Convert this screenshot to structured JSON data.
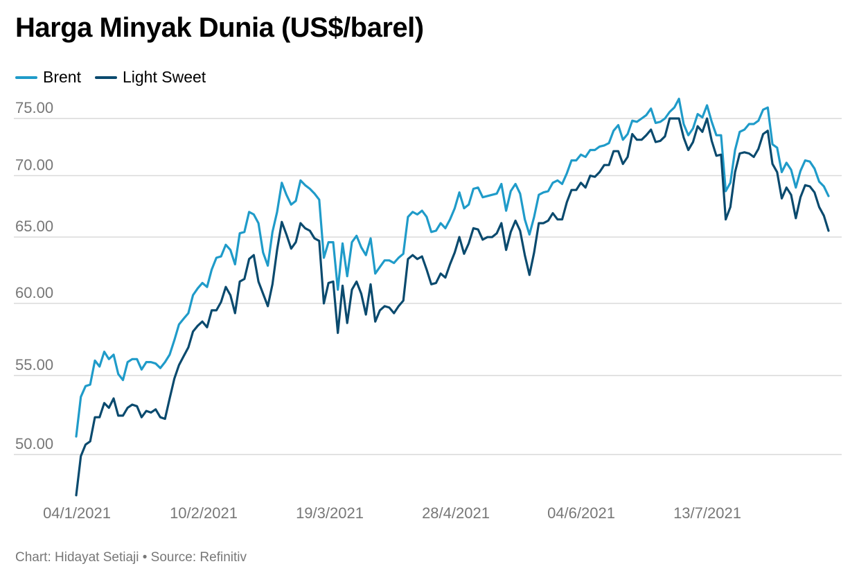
{
  "title": "Harga Minyak Dunia (US$/barel)",
  "footer": "Chart: Hidayat Setiaji • Source: Refinitiv",
  "chart_data": {
    "type": "line",
    "title": "Harga Minyak Dunia (US$/barel)",
    "xlabel": "",
    "ylabel": "",
    "ylim": [
      47.5,
      76.5
    ],
    "y_scale": "log",
    "grid": true,
    "legend_position": "top-left",
    "x_ticks": [
      "04/1/2021",
      "10/2/2021",
      "19/3/2021",
      "28/4/2021",
      "04/6/2021",
      "13/7/2021"
    ],
    "y_ticks": [
      50,
      55,
      60,
      65,
      70,
      75
    ],
    "y_tick_labels": [
      "50.00",
      "55.00",
      "60.00",
      "65.00",
      "70.00",
      "75.00"
    ],
    "series": [
      {
        "name": "Brent",
        "color": "#1f9bc9",
        "values": [
          51.1,
          53.6,
          54.3,
          54.4,
          56.0,
          55.6,
          56.6,
          56.1,
          56.4,
          55.1,
          54.7,
          55.9,
          56.1,
          56.1,
          55.4,
          55.9,
          55.9,
          55.8,
          55.5,
          55.9,
          56.4,
          57.4,
          58.5,
          58.9,
          59.3,
          60.6,
          61.1,
          61.5,
          61.2,
          62.5,
          63.4,
          63.5,
          64.4,
          64.0,
          62.9,
          65.3,
          65.4,
          67.0,
          66.8,
          66.1,
          63.8,
          62.8,
          65.4,
          67.0,
          69.4,
          68.4,
          67.6,
          67.9,
          69.6,
          69.2,
          68.9,
          68.5,
          68.0,
          63.4,
          64.6,
          64.6,
          61.0,
          64.5,
          62.0,
          64.6,
          65.1,
          64.2,
          63.6,
          64.9,
          62.2,
          62.7,
          63.2,
          63.2,
          63.0,
          63.4,
          63.7,
          66.6,
          67.0,
          66.8,
          67.1,
          66.6,
          65.4,
          65.5,
          66.1,
          65.7,
          66.4,
          67.3,
          68.6,
          67.3,
          67.6,
          68.9,
          69.0,
          68.2,
          68.3,
          68.4,
          68.5,
          69.3,
          67.1,
          68.7,
          69.3,
          68.5,
          66.4,
          65.2,
          66.6,
          68.4,
          68.6,
          68.7,
          69.4,
          69.6,
          69.3,
          70.2,
          71.3,
          71.3,
          71.8,
          71.6,
          72.2,
          72.2,
          72.5,
          72.6,
          72.8,
          73.9,
          74.4,
          73.1,
          73.6,
          74.8,
          74.7,
          75.0,
          75.3,
          75.9,
          74.6,
          74.7,
          75.0,
          75.6,
          76.0,
          76.8,
          74.5,
          73.5,
          74.1,
          75.4,
          75.1,
          76.2,
          74.7,
          73.5,
          73.5,
          68.7,
          69.4,
          72.2,
          73.8,
          74.0,
          74.5,
          74.5,
          74.8,
          75.8,
          76.0,
          72.7,
          72.4,
          70.3,
          71.1,
          70.5,
          69.0,
          70.4,
          71.3,
          71.2,
          70.6,
          69.5,
          69.1,
          68.3
        ]
      },
      {
        "name": "Light Sweet",
        "color": "#0a4a6e",
        "values": [
          47.6,
          49.9,
          50.6,
          50.8,
          52.3,
          52.3,
          53.2,
          52.9,
          53.5,
          52.4,
          52.4,
          52.9,
          53.1,
          53.0,
          52.3,
          52.7,
          52.6,
          52.8,
          52.3,
          52.2,
          53.5,
          54.8,
          55.7,
          56.3,
          56.9,
          58.0,
          58.4,
          58.7,
          58.3,
          59.5,
          59.5,
          60.1,
          61.2,
          60.6,
          59.3,
          61.6,
          61.8,
          63.3,
          63.6,
          61.6,
          60.7,
          59.8,
          61.4,
          64.0,
          66.2,
          65.2,
          64.1,
          64.6,
          66.1,
          65.7,
          65.5,
          64.9,
          64.7,
          60.0,
          61.5,
          61.6,
          57.9,
          61.3,
          58.6,
          61.0,
          61.6,
          60.7,
          59.2,
          61.4,
          58.7,
          59.5,
          59.8,
          59.7,
          59.3,
          59.8,
          60.2,
          63.3,
          63.6,
          63.3,
          63.5,
          62.5,
          61.4,
          61.5,
          62.2,
          61.9,
          62.9,
          63.8,
          65.0,
          63.7,
          64.5,
          65.7,
          65.6,
          64.8,
          65.0,
          65.0,
          65.3,
          66.1,
          64.0,
          65.4,
          66.3,
          65.5,
          63.6,
          62.1,
          63.8,
          66.1,
          66.1,
          66.3,
          66.9,
          66.4,
          66.4,
          67.8,
          68.8,
          68.8,
          69.4,
          69.0,
          70.0,
          69.9,
          70.3,
          70.9,
          70.9,
          72.1,
          72.1,
          71.0,
          71.6,
          73.6,
          73.1,
          73.1,
          73.5,
          74.0,
          72.9,
          73.0,
          73.4,
          75.0,
          75.0,
          75.0,
          73.3,
          72.2,
          72.9,
          74.3,
          73.8,
          75.0,
          73.0,
          71.7,
          71.8,
          66.4,
          67.4,
          70.3,
          71.9,
          72.0,
          71.9,
          71.6,
          72.3,
          73.6,
          73.9,
          71.0,
          70.3,
          68.1,
          69.0,
          68.4,
          66.5,
          68.2,
          69.2,
          69.1,
          68.6,
          67.4,
          66.7,
          65.5
        ]
      }
    ]
  }
}
